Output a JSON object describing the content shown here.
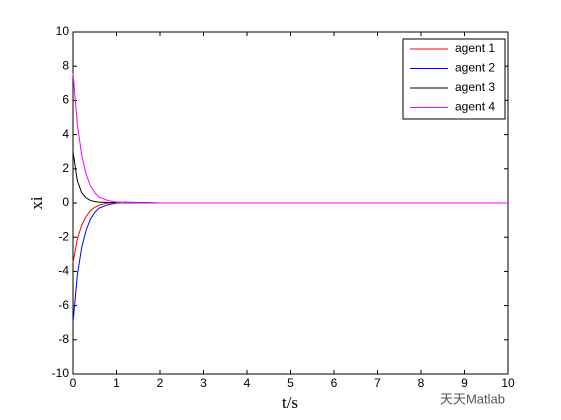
{
  "chart_data": {
    "type": "line",
    "xlabel": "t/s",
    "ylabel": "xi",
    "x": [
      0,
      0.1,
      0.2,
      0.3,
      0.4,
      0.5,
      0.6,
      0.8,
      1,
      1.2,
      2,
      10
    ],
    "series": [
      {
        "name": "agent 1",
        "color": "#ff0000",
        "values": [
          -3.5,
          -2.1,
          -1.3,
          -0.8,
          -0.45,
          -0.25,
          -0.12,
          0,
          0.05,
          0.03,
          0,
          0
        ]
      },
      {
        "name": "agent 2",
        "color": "#0000ff",
        "values": [
          -7,
          -4.2,
          -2.6,
          -1.6,
          -0.95,
          -0.55,
          -0.3,
          -0.1,
          0,
          0.05,
          0,
          0
        ]
      },
      {
        "name": "agent 3",
        "color": "#000000",
        "values": [
          3,
          1.3,
          0.6,
          0.3,
          0.15,
          0.08,
          0.05,
          0.03,
          0.02,
          0.01,
          0,
          0
        ]
      },
      {
        "name": "agent 4",
        "color": "#ff00ff",
        "values": [
          7.6,
          4.6,
          2.8,
          1.7,
          1.0,
          0.6,
          0.35,
          0.15,
          0.05,
          0.02,
          0,
          0
        ]
      }
    ],
    "xlim": [
      0,
      10
    ],
    "xticks": [
      0,
      1,
      2,
      3,
      4,
      5,
      6,
      7,
      8,
      9,
      10
    ],
    "ylim": [
      -10,
      10
    ],
    "yticks": [
      -10,
      -8,
      -6,
      -4,
      -2,
      0,
      2,
      4,
      6,
      8,
      10
    ],
    "legend": "northeast",
    "grid": false,
    "watermark": "天天Matlab"
  }
}
